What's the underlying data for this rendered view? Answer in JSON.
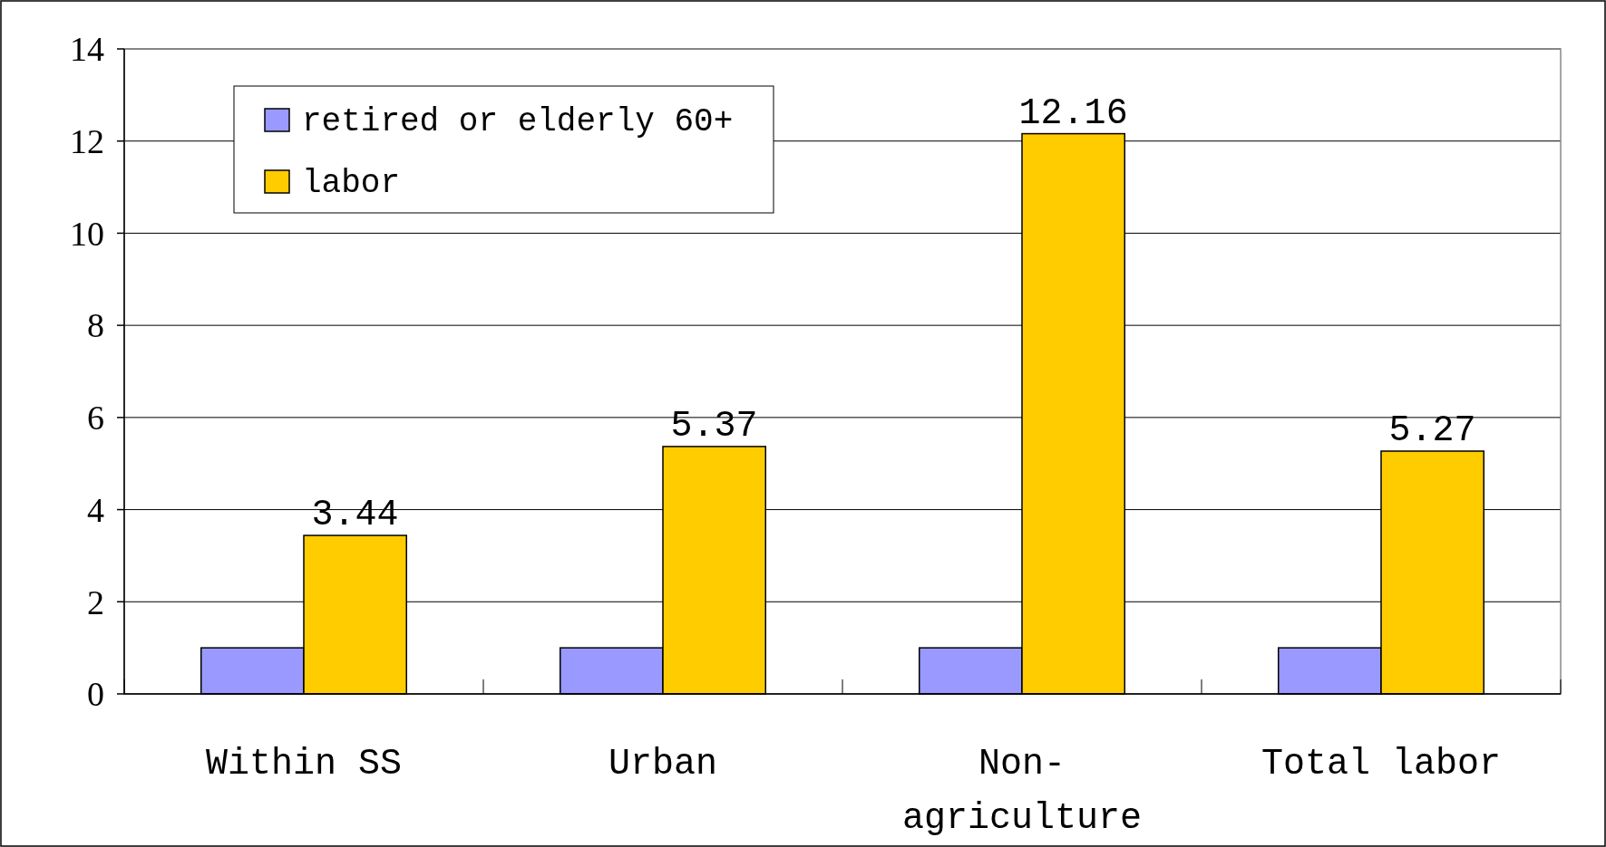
{
  "chart_data": {
    "type": "bar",
    "categories": [
      "Within SS",
      "Urban",
      "Non-agriculture",
      "Total labor"
    ],
    "series": [
      {
        "name": "retired or elderly 60+",
        "color": "#9999ff",
        "values": [
          1,
          1,
          1,
          1
        ]
      },
      {
        "name": "labor",
        "color": "#ffcc00",
        "values": [
          3.44,
          5.37,
          12.16,
          5.27
        ],
        "value_labels": [
          "3.44",
          "5.37",
          "12.16",
          "5.27"
        ]
      }
    ],
    "ylim": [
      0,
      14
    ],
    "yticks": [
      0,
      2,
      4,
      6,
      8,
      10,
      12,
      14
    ],
    "grid": "y",
    "legend": "top left"
  }
}
